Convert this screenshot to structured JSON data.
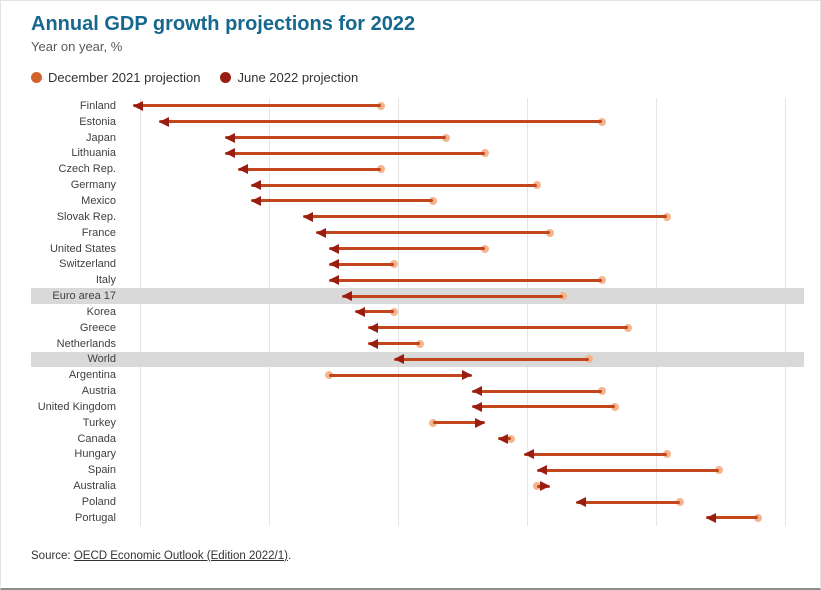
{
  "colors": {
    "title": "#16688f",
    "dec_marker": "#d2622a",
    "dec_tail_dot": "#f4b58e",
    "arrow_shaft": "#c2451c",
    "june_marker": "#9a1d12",
    "band": "#d9d9d9"
  },
  "source": {
    "prefix": "Source: ",
    "link": "OECD Economic Outlook (Edition 2022/1)",
    "suffix": "."
  },
  "chart_data": {
    "type": "scatter",
    "variant": "dumbbell-arrow",
    "title": "Annual GDP growth projections for 2022",
    "subtitle": "Year on year, %",
    "xlabel": "",
    "ylabel": "",
    "xlim": [
      0.92,
      6.15
    ],
    "gridlines": [
      1,
      2,
      3,
      4,
      5,
      6
    ],
    "legend_position": "top-left",
    "categories": [
      "Finland",
      "Estonia",
      "Japan",
      "Lithuania",
      "Czech Rep.",
      "Germany",
      "Mexico",
      "Slovak Rep.",
      "France",
      "United States",
      "Switzerland",
      "Italy",
      "Euro area 17",
      "Korea",
      "Greece",
      "Netherlands",
      "World",
      "Argentina",
      "Austria",
      "United Kingdom",
      "Turkey",
      "Canada",
      "Hungary",
      "Spain",
      "Australia",
      "Poland",
      "Portugal"
    ],
    "series": [
      {
        "name": "December 2021 projection",
        "values": [
          2.9,
          4.6,
          3.4,
          3.7,
          2.9,
          4.1,
          3.3,
          5.1,
          4.2,
          3.7,
          3.0,
          4.6,
          4.3,
          3.0,
          4.8,
          3.2,
          4.5,
          2.5,
          4.6,
          4.7,
          3.3,
          3.9,
          5.1,
          5.5,
          4.1,
          5.2,
          5.8
        ]
      },
      {
        "name": "June 2022 projection",
        "values": [
          1.0,
          1.2,
          1.7,
          1.7,
          1.8,
          1.9,
          1.9,
          2.3,
          2.4,
          2.5,
          2.5,
          2.5,
          2.6,
          2.7,
          2.8,
          2.8,
          3.0,
          3.6,
          3.6,
          3.6,
          3.7,
          3.8,
          4.0,
          4.1,
          4.2,
          4.4,
          5.4
        ]
      }
    ],
    "highlighted_categories": [
      "Euro area 17",
      "World"
    ]
  }
}
